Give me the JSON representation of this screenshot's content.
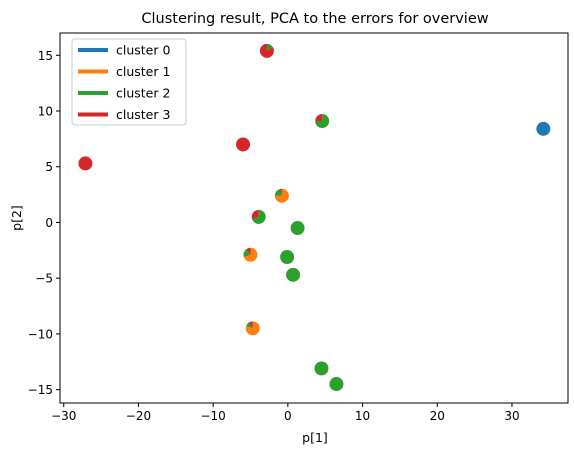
{
  "chart_data": {
    "type": "scatter",
    "title": "Clustering result, PCA to the errors for overview",
    "xlabel": "p[1]",
    "ylabel": "p[2]",
    "xlim": [
      -30.5,
      37.5
    ],
    "ylim": [
      -16.2,
      17
    ],
    "xticks": [
      -30,
      -20,
      -10,
      0,
      10,
      20,
      30
    ],
    "yticks": [
      -15,
      -10,
      -5,
      0,
      5,
      10,
      15
    ],
    "grid": false,
    "legend_position": "top-left",
    "series": [
      {
        "name": "cluster 0",
        "color": "#1f77b4"
      },
      {
        "name": "cluster 1",
        "color": "#ff7f0e"
      },
      {
        "name": "cluster 2",
        "color": "#2ca02c"
      },
      {
        "name": "cluster 3",
        "color": "#d62728"
      }
    ],
    "points": [
      {
        "x": 34.2,
        "y": 8.4,
        "fractions": [
          1,
          0,
          0,
          0
        ]
      },
      {
        "x": -2.8,
        "y": 15.4,
        "fractions": [
          0,
          0,
          0.15,
          0.85
        ]
      },
      {
        "x": 4.6,
        "y": 9.1,
        "fractions": [
          0,
          0,
          0.75,
          0.25
        ]
      },
      {
        "x": -6.0,
        "y": 7.0,
        "fractions": [
          0,
          0,
          0,
          1
        ]
      },
      {
        "x": -27.1,
        "y": 5.3,
        "fractions": [
          0,
          0,
          0,
          1
        ]
      },
      {
        "x": -0.8,
        "y": 2.4,
        "fractions": [
          0,
          0.75,
          0.2,
          0.05
        ]
      },
      {
        "x": -3.9,
        "y": 0.5,
        "fractions": [
          0,
          0,
          0.7,
          0.3
        ]
      },
      {
        "x": 1.3,
        "y": -0.5,
        "fractions": [
          0,
          0,
          1,
          0
        ]
      },
      {
        "x": -5.0,
        "y": -2.9,
        "fractions": [
          0,
          0.7,
          0.2,
          0.1
        ]
      },
      {
        "x": -0.1,
        "y": -3.1,
        "fractions": [
          0,
          0,
          1,
          0
        ]
      },
      {
        "x": 0.7,
        "y": -4.7,
        "fractions": [
          0,
          0,
          1,
          0
        ]
      },
      {
        "x": -4.7,
        "y": -9.5,
        "fractions": [
          0,
          0.8,
          0.1,
          0.1
        ]
      },
      {
        "x": 4.5,
        "y": -13.1,
        "fractions": [
          0,
          0,
          1,
          0
        ]
      },
      {
        "x": 6.5,
        "y": -14.5,
        "fractions": [
          0,
          0,
          1,
          0
        ]
      }
    ]
  }
}
